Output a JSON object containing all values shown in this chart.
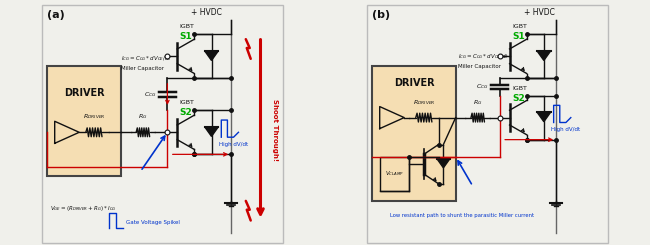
{
  "bg_color": "#f0f0eb",
  "border_color": "#bbbbbb",
  "driver_fill": "#f5deb3",
  "driver_border": "#444444",
  "green_color": "#00aa00",
  "red_color": "#cc0000",
  "blue_color": "#0033cc",
  "dark_red": "#cc0000",
  "gray_color": "#666666",
  "black": "#111111",
  "label_a": "(a)",
  "label_b": "(b)",
  "hvdc_label": "+ HVDC",
  "igbt_label": "IGBT",
  "s1_label": "S1",
  "s2_label": "S2",
  "driver_label": "DRIVER",
  "miller_cap_label": "Miller Capacitor",
  "ccg_label": "C_CG",
  "rdriver_label": "R_DRIVER",
  "rg_label": "R_G",
  "icg_label": "I_CG=C_CG*dV_CE/dt",
  "shoot_through": "Shoot Through!",
  "high_dvdt": "High dV/dt",
  "gate_voltage_spike": "Gate Voltage Spikel",
  "vge_label": "V_GE=(R_DRIVER +R_G)*I_CG",
  "vclamp_label": "V_CLAMP",
  "low_resistant": "Low resistant path to shunt the parasitic Miller current",
  "fig_width": 6.5,
  "fig_height": 2.45,
  "dpi": 100
}
